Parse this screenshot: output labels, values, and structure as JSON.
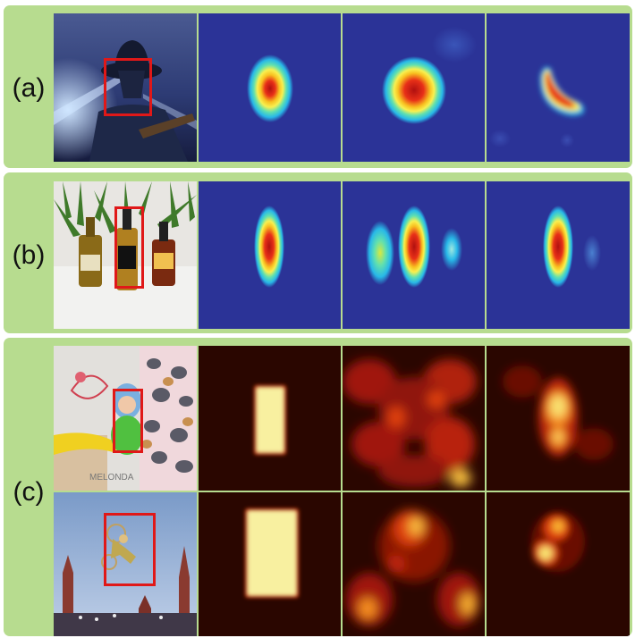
{
  "figure": {
    "rows": [
      {
        "label": "(a)"
      },
      {
        "label": "(b)"
      },
      {
        "label": "(c)"
      }
    ]
  },
  "colors": {
    "panel_bg": "#b7dc8f",
    "jet_background": "#2b3397",
    "hot_background": "#2a0600",
    "box_red": "#e01818"
  }
}
